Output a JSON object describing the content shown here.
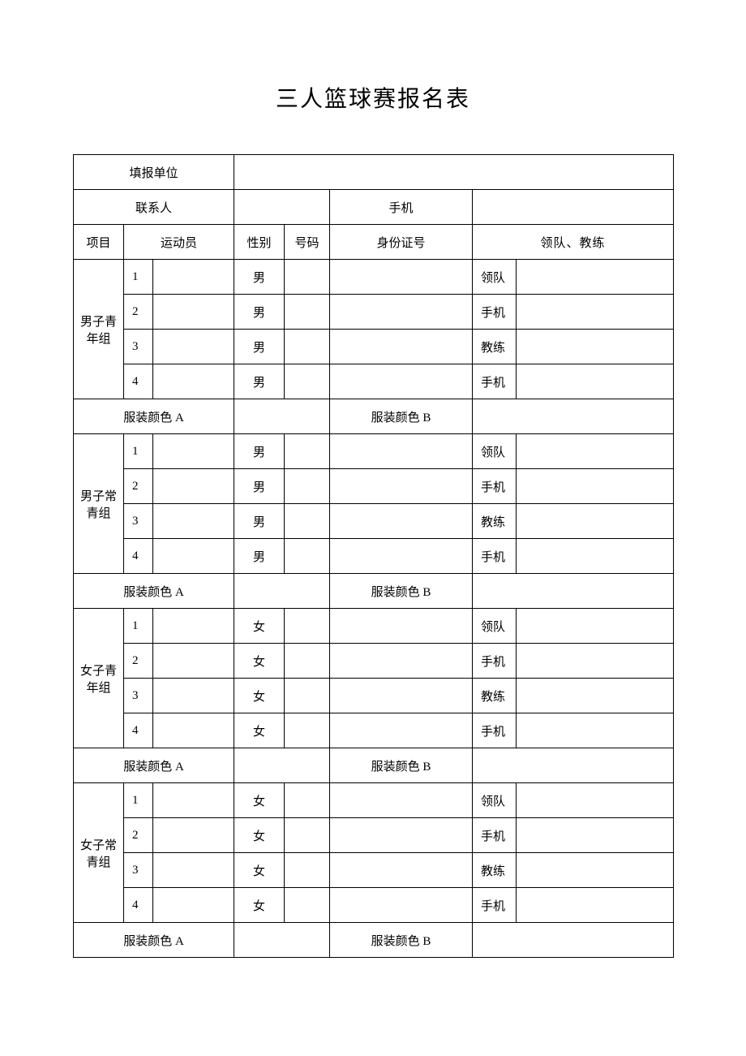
{
  "title": "三人篮球赛报名表",
  "header": {
    "org_label": "填报单位",
    "contact_label": "联系人",
    "phone_label": "手机"
  },
  "columns": {
    "project": "项目",
    "athlete": "运动员",
    "gender": "性别",
    "number": "号码",
    "id_number": "身份证号",
    "leader_coach": "领队、教练"
  },
  "uniform": {
    "color_a": "服装颜色 A",
    "color_b": "服装颜色 B"
  },
  "roles": {
    "leader": "领队",
    "phone": "手机",
    "coach": "教练"
  },
  "groups": [
    {
      "name_line1": "男子青",
      "name_line2": "年组",
      "rows": [
        {
          "idx": "1",
          "gender": "男",
          "role": "领队"
        },
        {
          "idx": "2",
          "gender": "男",
          "role": "手机"
        },
        {
          "idx": "3",
          "gender": "男",
          "role": "教练"
        },
        {
          "idx": "4",
          "gender": "男",
          "role": "手机"
        }
      ]
    },
    {
      "name_line1": "男子常",
      "name_line2": "青组",
      "rows": [
        {
          "idx": "1",
          "gender": "男",
          "role": "领队"
        },
        {
          "idx": "2",
          "gender": "男",
          "role": "手机"
        },
        {
          "idx": "3",
          "gender": "男",
          "role": "教练"
        },
        {
          "idx": "4",
          "gender": "男",
          "role": "手机"
        }
      ]
    },
    {
      "name_line1": "女子青",
      "name_line2": "年组",
      "rows": [
        {
          "idx": "1",
          "gender": "女",
          "role": "领队"
        },
        {
          "idx": "2",
          "gender": "女",
          "role": "手机"
        },
        {
          "idx": "3",
          "gender": "女",
          "role": "教练"
        },
        {
          "idx": "4",
          "gender": "女",
          "role": "手机"
        }
      ]
    },
    {
      "name_line1": "女子常",
      "name_line2": "青组",
      "rows": [
        {
          "idx": "1",
          "gender": "女",
          "role": "领队"
        },
        {
          "idx": "2",
          "gender": "女",
          "role": "手机"
        },
        {
          "idx": "3",
          "gender": "女",
          "role": "教练"
        },
        {
          "idx": "4",
          "gender": "女",
          "role": "手机"
        }
      ]
    }
  ],
  "col_widths": {
    "c1": 62,
    "c2": 36,
    "c3": 100,
    "c4": 62,
    "c5": 56,
    "c6": 176,
    "c7": 54,
    "c8": 194
  },
  "styles": {
    "background": "#ffffff",
    "border": "#000000",
    "title_fontsize": 28,
    "cell_fontsize": 15
  }
}
